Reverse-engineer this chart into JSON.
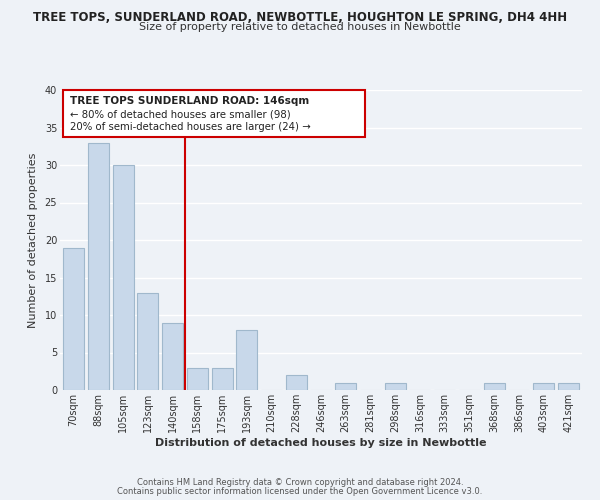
{
  "title": "TREE TOPS, SUNDERLAND ROAD, NEWBOTTLE, HOUGHTON LE SPRING, DH4 4HH",
  "subtitle": "Size of property relative to detached houses in Newbottle",
  "xlabel": "Distribution of detached houses by size in Newbottle",
  "ylabel": "Number of detached properties",
  "bar_labels": [
    "70sqm",
    "88sqm",
    "105sqm",
    "123sqm",
    "140sqm",
    "158sqm",
    "175sqm",
    "193sqm",
    "210sqm",
    "228sqm",
    "246sqm",
    "263sqm",
    "281sqm",
    "298sqm",
    "316sqm",
    "333sqm",
    "351sqm",
    "368sqm",
    "386sqm",
    "403sqm",
    "421sqm"
  ],
  "bar_values": [
    19,
    33,
    30,
    13,
    9,
    3,
    3,
    8,
    0,
    2,
    0,
    1,
    0,
    1,
    0,
    0,
    0,
    1,
    0,
    1,
    1
  ],
  "bar_color": "#c8d8ea",
  "bar_edge_color": "#a0b8cc",
  "reference_line_x": 4.5,
  "reference_line_color": "#cc0000",
  "annotation_text_line1": "TREE TOPS SUNDERLAND ROAD: 146sqm",
  "annotation_text_line2": "← 80% of detached houses are smaller (98)",
  "annotation_text_line3": "20% of semi-detached houses are larger (24) →",
  "annotation_box_color": "#ffffff",
  "annotation_box_edge_color": "#cc0000",
  "footer_line1": "Contains HM Land Registry data © Crown copyright and database right 2024.",
  "footer_line2": "Contains public sector information licensed under the Open Government Licence v3.0.",
  "ylim": [
    0,
    40
  ],
  "yticks": [
    0,
    5,
    10,
    15,
    20,
    25,
    30,
    35,
    40
  ],
  "background_color": "#eef2f7",
  "grid_color": "#ffffff",
  "title_fontsize": 8.5,
  "subtitle_fontsize": 8.0,
  "axis_label_fontsize": 8.0,
  "tick_fontsize": 7.0,
  "footer_fontsize": 6.0
}
